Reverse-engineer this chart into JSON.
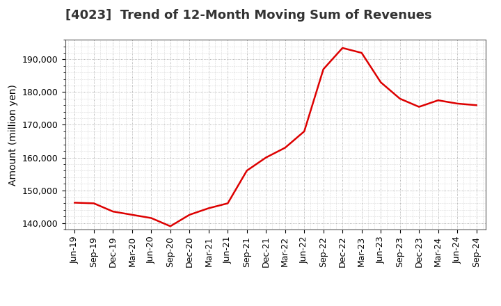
{
  "title": "[4023]  Trend of 12-Month Moving Sum of Revenues",
  "ylabel": "Amount (million yen)",
  "line_color": "#DD0000",
  "background_color": "#FFFFFF",
  "plot_bg_color": "#FFFFFF",
  "grid_color": "#AAAAAA",
  "tick_labels": [
    "Jun-19",
    "Sep-19",
    "Dec-19",
    "Mar-20",
    "Jun-20",
    "Sep-20",
    "Dec-20",
    "Mar-21",
    "Jun-21",
    "Sep-21",
    "Dec-21",
    "Mar-22",
    "Jun-22",
    "Sep-22",
    "Dec-22",
    "Mar-23",
    "Jun-23",
    "Sep-23",
    "Dec-23",
    "Mar-24",
    "Jun-24",
    "Sep-24"
  ],
  "values": [
    146200,
    146000,
    143500,
    142500,
    141500,
    139000,
    142500,
    144500,
    146000,
    156000,
    160000,
    163000,
    168000,
    187000,
    193500,
    192000,
    183000,
    178000,
    175500,
    177500,
    176500,
    176000
  ],
  "ylim": [
    138000,
    196000
  ],
  "yticks": [
    140000,
    150000,
    160000,
    170000,
    180000,
    190000
  ],
  "title_fontsize": 13,
  "label_fontsize": 10,
  "tick_fontsize": 9
}
